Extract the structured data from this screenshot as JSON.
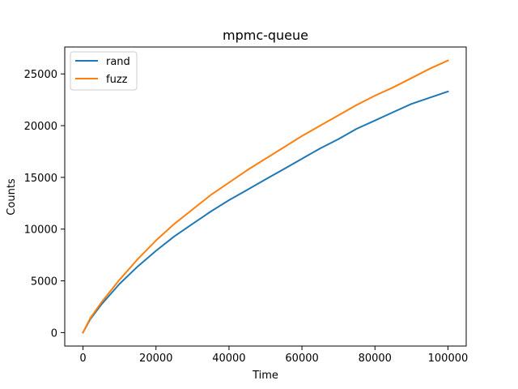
{
  "chart_data": {
    "type": "line",
    "title": "mpmc-queue",
    "xlabel": "Time",
    "ylabel": "Counts",
    "xlim": [
      -5000,
      105000
    ],
    "ylim": [
      -1300,
      27600
    ],
    "xticks": [
      0,
      20000,
      40000,
      60000,
      80000,
      100000
    ],
    "yticks": [
      0,
      5000,
      10000,
      15000,
      20000,
      25000
    ],
    "xtick_labels": [
      "0",
      "20000",
      "40000",
      "60000",
      "80000",
      "100000"
    ],
    "ytick_labels": [
      "0",
      "5000",
      "10000",
      "15000",
      "20000",
      "25000"
    ],
    "grid": false,
    "legend_position": "top-left",
    "series": [
      {
        "name": "rand",
        "color": "#1f77b4",
        "x": [
          0,
          2000,
          5000,
          10000,
          15000,
          20000,
          25000,
          30000,
          35000,
          40000,
          45000,
          50000,
          55000,
          60000,
          65000,
          70000,
          75000,
          80000,
          85000,
          90000,
          95000,
          100000
        ],
        "y": [
          0,
          1300,
          2700,
          4700,
          6400,
          7900,
          9300,
          10500,
          11700,
          12800,
          13800,
          14800,
          15800,
          16800,
          17800,
          18700,
          19700,
          20500,
          21300,
          22100,
          22700,
          23300
        ]
      },
      {
        "name": "fuzz",
        "color": "#ff7f0e",
        "x": [
          0,
          2000,
          5000,
          10000,
          15000,
          20000,
          25000,
          30000,
          35000,
          40000,
          45000,
          50000,
          55000,
          60000,
          65000,
          70000,
          75000,
          80000,
          85000,
          90000,
          95000,
          100000
        ],
        "y": [
          0,
          1400,
          2900,
          5100,
          7100,
          8900,
          10500,
          11900,
          13300,
          14500,
          15700,
          16800,
          17900,
          19000,
          20000,
          21000,
          22000,
          22900,
          23700,
          24600,
          25500,
          26300
        ]
      }
    ]
  }
}
